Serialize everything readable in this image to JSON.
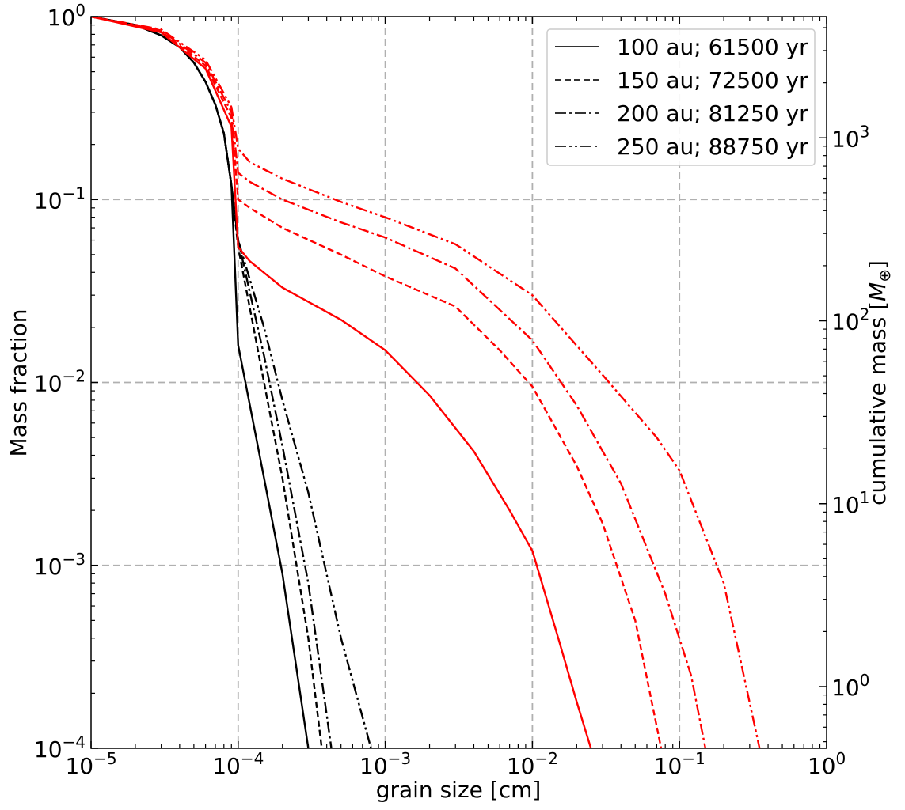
{
  "chart_data": {
    "type": "line",
    "xlabel": "grain size [cm]",
    "ylabel": "Mass fraction",
    "ylabel_right": "cumulative mass [",
    "ylabel_right_symbol": "M",
    "ylabel_right_sub": "⊕",
    "ylabel_right_close": "]",
    "xscale": "log",
    "yscale": "log",
    "xlim": [
      1e-05,
      1
    ],
    "ylim": [
      0.0001,
      1
    ],
    "right_axis_range": [
      0.46,
      4600
    ],
    "grid": true,
    "legend_location": "upper right",
    "x_ticks": [
      {
        "value": 1e-05,
        "base": "10",
        "exp": "−5"
      },
      {
        "value": 0.0001,
        "base": "10",
        "exp": "−4"
      },
      {
        "value": 0.001,
        "base": "10",
        "exp": "−3"
      },
      {
        "value": 0.01,
        "base": "10",
        "exp": "−2"
      },
      {
        "value": 0.1,
        "base": "10",
        "exp": "−1"
      },
      {
        "value": 1,
        "base": "10",
        "exp": "0"
      }
    ],
    "y_ticks": [
      {
        "value": 0.0001,
        "base": "10",
        "exp": "−4"
      },
      {
        "value": 0.001,
        "base": "10",
        "exp": "−3"
      },
      {
        "value": 0.01,
        "base": "10",
        "exp": "−2"
      },
      {
        "value": 0.1,
        "base": "10",
        "exp": "−1"
      },
      {
        "value": 1,
        "base": "10",
        "exp": "0"
      }
    ],
    "right_ticks": [
      {
        "value": 1,
        "base": "10",
        "exp": "0"
      },
      {
        "value": 10,
        "base": "10",
        "exp": "1"
      },
      {
        "value": 100,
        "base": "10",
        "exp": "2"
      },
      {
        "value": 1000,
        "base": "10",
        "exp": "3"
      }
    ],
    "legend": [
      {
        "label": "100 au; 61500 yr",
        "style": "solid"
      },
      {
        "label": "150 au; 72500 yr",
        "style": "dashed"
      },
      {
        "label": "200 au; 81250 yr",
        "style": "dashdot"
      },
      {
        "label": "250 au; 88750 yr",
        "style": "dashdotdot"
      }
    ],
    "series": [
      {
        "color": "#000000",
        "style": "solid",
        "x": [
          1e-05,
          2e-05,
          3e-05,
          4e-05,
          5e-05,
          6e-05,
          7e-05,
          8e-05,
          9e-05,
          0.0001,
          0.00015,
          0.0002,
          0.0003
        ],
        "y": [
          1,
          0.9,
          0.79,
          0.68,
          0.56,
          0.44,
          0.33,
          0.23,
          0.12,
          0.016,
          0.003,
          0.0009,
          0.0001
        ]
      },
      {
        "color": "#000000",
        "style": "dashed",
        "x": [
          1e-05,
          2e-05,
          3e-05,
          4e-05,
          5e-05,
          6e-05,
          7e-05,
          8e-05,
          9e-05,
          0.0001,
          0.00015,
          0.0002,
          0.0003,
          0.00037
        ],
        "y": [
          1,
          0.9,
          0.79,
          0.68,
          0.56,
          0.44,
          0.33,
          0.23,
          0.12,
          0.055,
          0.01,
          0.003,
          0.0004,
          0.0001
        ]
      },
      {
        "color": "#000000",
        "style": "dashdot",
        "x": [
          1e-05,
          2e-05,
          3e-05,
          4e-05,
          5e-05,
          6e-05,
          7e-05,
          8e-05,
          9e-05,
          0.0001,
          0.00015,
          0.0002,
          0.0003,
          0.00043
        ],
        "y": [
          1,
          0.9,
          0.79,
          0.68,
          0.56,
          0.44,
          0.33,
          0.23,
          0.12,
          0.06,
          0.014,
          0.0045,
          0.0008,
          0.0001
        ]
      },
      {
        "color": "#000000",
        "style": "dashdotdot",
        "x": [
          1e-05,
          2e-05,
          3e-05,
          4e-05,
          5e-05,
          6e-05,
          7e-05,
          8e-05,
          9e-05,
          0.0001,
          0.00015,
          0.0002,
          0.0003,
          0.0005,
          0.0008
        ],
        "y": [
          1,
          0.9,
          0.79,
          0.68,
          0.56,
          0.44,
          0.33,
          0.23,
          0.12,
          0.06,
          0.02,
          0.008,
          0.0025,
          0.0004,
          0.0001
        ]
      },
      {
        "color": "#ff0000",
        "style": "solid",
        "x": [
          1e-05,
          3e-05,
          6e-05,
          9e-05,
          0.0001,
          0.00012,
          0.0002,
          0.0005,
          0.001,
          0.002,
          0.004,
          0.007,
          0.01,
          0.015,
          0.02,
          0.025
        ],
        "y": [
          1,
          0.82,
          0.52,
          0.25,
          0.055,
          0.046,
          0.033,
          0.022,
          0.015,
          0.0085,
          0.0042,
          0.002,
          0.0012,
          0.0004,
          0.00018,
          0.0001
        ]
      },
      {
        "color": "#ff0000",
        "style": "dashed",
        "x": [
          1e-05,
          3e-05,
          6e-05,
          9e-05,
          0.0001,
          0.00012,
          0.0002,
          0.0005,
          0.001,
          0.003,
          0.006,
          0.01,
          0.02,
          0.03,
          0.05,
          0.075
        ],
        "y": [
          1,
          0.83,
          0.54,
          0.28,
          0.1,
          0.09,
          0.07,
          0.05,
          0.038,
          0.026,
          0.015,
          0.0095,
          0.0035,
          0.0017,
          0.0005,
          0.0001
        ]
      },
      {
        "color": "#ff0000",
        "style": "dashdot",
        "x": [
          1e-05,
          3e-05,
          6e-05,
          9e-05,
          0.0001,
          0.00012,
          0.0002,
          0.0005,
          0.001,
          0.003,
          0.01,
          0.02,
          0.04,
          0.08,
          0.12,
          0.15
        ],
        "y": [
          1,
          0.84,
          0.56,
          0.3,
          0.14,
          0.125,
          0.1,
          0.075,
          0.062,
          0.042,
          0.017,
          0.0075,
          0.0028,
          0.0007,
          0.00025,
          0.0001
        ]
      },
      {
        "color": "#ff0000",
        "style": "dashdotdot",
        "x": [
          1e-05,
          3e-05,
          6e-05,
          9e-05,
          0.0001,
          0.00012,
          0.0002,
          0.0005,
          0.001,
          0.003,
          0.01,
          0.03,
          0.07,
          0.1,
          0.2,
          0.35
        ],
        "y": [
          1,
          0.85,
          0.58,
          0.32,
          0.19,
          0.16,
          0.13,
          0.097,
          0.08,
          0.057,
          0.03,
          0.011,
          0.005,
          0.0033,
          0.0008,
          0.0001
        ]
      }
    ]
  }
}
